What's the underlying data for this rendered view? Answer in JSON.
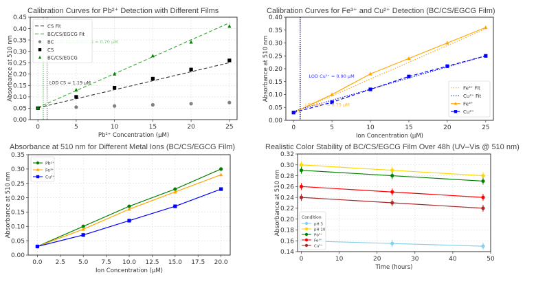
{
  "chart_data": [
    {
      "type": "scatter",
      "title": "Calibration Curves for Pb²⁺ Detection with Different Films",
      "xlabel": "Pb²⁺ Concentration (µM)",
      "ylabel": "Absorbance at 510 nm",
      "xlim": [
        -1,
        26
      ],
      "ylim": [
        0,
        0.45
      ],
      "xticks": [
        0,
        5,
        10,
        15,
        20,
        25
      ],
      "yticks": [
        "0.00",
        "0.05",
        "0.10",
        "0.15",
        "0.20",
        "0.25",
        "0.30",
        "0.35",
        "0.40",
        "0.45"
      ],
      "grid": true,
      "legend": "top-left",
      "series": [
        {
          "name": "CS Fit",
          "kind": "fit",
          "color": "#333333",
          "dash": "dashed",
          "x": [
            0,
            25
          ],
          "y": [
            0.052,
            0.25
          ]
        },
        {
          "name": "BC/CS/EGCG Fit",
          "kind": "fit",
          "color": "#2ca02c",
          "dash": "dashed",
          "x": [
            0,
            25
          ],
          "y": [
            0.053,
            0.425
          ]
        },
        {
          "name": "BC",
          "kind": "points",
          "color": "#808080",
          "marker": "circle",
          "x": [
            0,
            5,
            10,
            15,
            20,
            25
          ],
          "y": [
            0.05,
            0.055,
            0.06,
            0.065,
            0.07,
            0.075
          ]
        },
        {
          "name": "CS",
          "kind": "points",
          "color": "#000000",
          "marker": "square",
          "x": [
            0,
            5,
            10,
            15,
            20,
            25
          ],
          "y": [
            0.05,
            0.1,
            0.14,
            0.18,
            0.22,
            0.26
          ]
        },
        {
          "name": "BC/CS/EGCG",
          "kind": "points",
          "color": "#008000",
          "marker": "triangle",
          "x": [
            0,
            5,
            10,
            15,
            20,
            25
          ],
          "y": [
            0.05,
            0.13,
            0.2,
            0.28,
            0.34,
            0.41
          ]
        }
      ],
      "vlines": [
        {
          "x": 0.7,
          "color": "#2ca02c"
        },
        {
          "x": 1.19,
          "color": "#555555"
        }
      ],
      "annotations": [
        {
          "text": "LOD BC/CS/EGCG = 0.70 µM",
          "x": 2.2,
          "y": 0.335,
          "color": "#7fc97f"
        },
        {
          "text": "LOD CS = 1.19 µM",
          "x": 1.5,
          "y": 0.155,
          "color": "#333333"
        }
      ]
    },
    {
      "type": "line",
      "title": "Calibration Curves for Fe³⁺ and Cu²⁺ Detection (BC/CS/EGCG Film)",
      "xlabel": "Ion Concentration (µM)",
      "ylabel": "Absorbance at 510 nm",
      "xlim": [
        -1,
        26
      ],
      "ylim": [
        0,
        0.4
      ],
      "xticks": [
        0,
        5,
        10,
        15,
        20,
        25
      ],
      "yticks": [
        "0.00",
        "0.05",
        "0.10",
        "0.15",
        "0.20",
        "0.25",
        "0.30",
        "0.35",
        "0.40"
      ],
      "grid": false,
      "legend": "bottom-right",
      "series": [
        {
          "name": "Fe³⁺ Fit",
          "kind": "fit",
          "color": "#ffa500",
          "dash": "dotted",
          "x": [
            0,
            25
          ],
          "y": [
            0.03,
            0.355
          ]
        },
        {
          "name": "Cu²⁺ Fit",
          "kind": "fit",
          "color": "#0000ff",
          "dash": "dotted",
          "x": [
            0,
            25
          ],
          "y": [
            0.035,
            0.25
          ]
        },
        {
          "name": "Fe³⁺",
          "kind": "line",
          "color": "#ffa500",
          "marker": "triangle",
          "x": [
            0,
            5,
            10,
            15,
            20,
            25
          ],
          "y": [
            0.03,
            0.1,
            0.18,
            0.24,
            0.3,
            0.36
          ]
        },
        {
          "name": "Cu²⁺",
          "kind": "line",
          "color": "#0000ff",
          "marker": "square",
          "dash": "dashed",
          "x": [
            0,
            5,
            10,
            15,
            20,
            25
          ],
          "y": [
            0.03,
            0.07,
            0.12,
            0.17,
            0.21,
            0.25
          ]
        }
      ],
      "vlines": [
        {
          "x": 0.75,
          "color": "#ffa500"
        },
        {
          "x": 0.9,
          "color": "#0000ff"
        }
      ],
      "annotations": [
        {
          "text": "LOD Cu²⁺ = 0.90 µM",
          "x": 2.0,
          "y": 0.165,
          "color": "#3333ff"
        },
        {
          "text": "LOD Fe³⁺ = 0.75 µM",
          "x": 1.5,
          "y": 0.055,
          "color": "#ffb733"
        }
      ]
    },
    {
      "type": "line",
      "title": "Absorbance at 510 nm for Different Metal Ions (BC/CS/EGCG Film)",
      "xlabel": "Ion Concentration (µM)",
      "ylabel": "Absorbance at 510 nm",
      "xlim": [
        -1,
        21
      ],
      "ylim": [
        0,
        0.35
      ],
      "xticks": [
        "0.0",
        "2.5",
        "5.0",
        "7.5",
        "10.0",
        "12.5",
        "15.0",
        "17.5",
        "20.0"
      ],
      "yticks": [
        "0.00",
        "0.05",
        "0.10",
        "0.15",
        "0.20",
        "0.25",
        "0.30",
        "0.35"
      ],
      "grid": true,
      "legend": "top-left",
      "series": [
        {
          "name": "Pb²⁺",
          "kind": "line",
          "color": "#008000",
          "marker": "circle",
          "x": [
            0,
            5,
            10,
            15,
            20
          ],
          "y": [
            0.03,
            0.1,
            0.17,
            0.23,
            0.3
          ]
        },
        {
          "name": "Fe³⁺",
          "kind": "line",
          "color": "#ffa500",
          "marker": "triangle",
          "x": [
            0,
            5,
            10,
            15,
            20
          ],
          "y": [
            0.03,
            0.09,
            0.16,
            0.22,
            0.28
          ]
        },
        {
          "name": "Cu²⁺",
          "kind": "line",
          "color": "#0000ff",
          "marker": "square",
          "x": [
            0,
            5,
            10,
            15,
            20
          ],
          "y": [
            0.03,
            0.07,
            0.12,
            0.17,
            0.23
          ]
        }
      ],
      "vlines": [],
      "annotations": []
    },
    {
      "type": "line",
      "title": "Realistic Color Stability of BC/CS/EGCG Film Over 48h (UV–Vis @ 510 nm)",
      "xlabel": "Time (hours)",
      "ylabel": "Absorbance at 510 nm",
      "xlim": [
        -1,
        50
      ],
      "ylim": [
        0.14,
        0.32
      ],
      "xticks": [
        0,
        10,
        20,
        30,
        40,
        50
      ],
      "yticks": [
        "0.14",
        "0.16",
        "0.18",
        "0.20",
        "0.22",
        "0.24",
        "0.26",
        "0.28",
        "0.30",
        "0.32"
      ],
      "grid": true,
      "legend": "bottom-left",
      "legend_title": "Condition",
      "series": [
        {
          "name": "pH 3",
          "kind": "line",
          "color": "#87ceeb",
          "marker": "circle",
          "x": [
            0,
            24,
            48
          ],
          "y": [
            0.16,
            0.155,
            0.15
          ]
        },
        {
          "name": "pH 10",
          "kind": "line",
          "color": "#ffd700",
          "marker": "circle",
          "x": [
            0,
            24,
            48
          ],
          "y": [
            0.3,
            0.29,
            0.28
          ]
        },
        {
          "name": "Pb²⁺",
          "kind": "line",
          "color": "#008000",
          "marker": "circle",
          "x": [
            0,
            24,
            48
          ],
          "y": [
            0.29,
            0.28,
            0.27
          ]
        },
        {
          "name": "Fe³⁺",
          "kind": "line",
          "color": "#ff0000",
          "marker": "circle",
          "x": [
            0,
            24,
            48
          ],
          "y": [
            0.26,
            0.25,
            0.24
          ]
        },
        {
          "name": "Cu²⁺",
          "kind": "line",
          "color": "#a52a2a",
          "marker": "circle",
          "x": [
            0,
            24,
            48
          ],
          "y": [
            0.24,
            0.23,
            0.22
          ]
        }
      ],
      "vlines": [],
      "annotations": []
    }
  ]
}
